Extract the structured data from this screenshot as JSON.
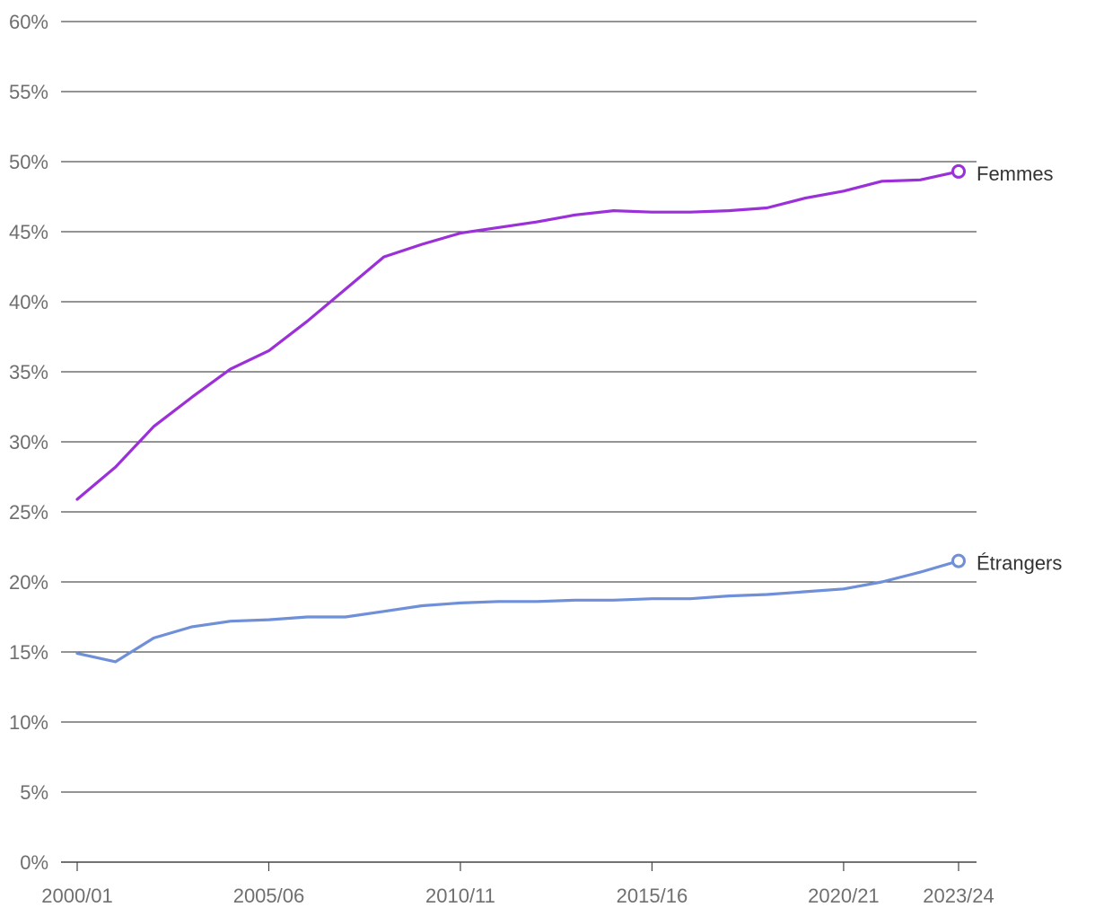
{
  "chart_data": {
    "type": "line",
    "title": "",
    "xlabel": "",
    "ylabel": "",
    "y_unit_suffix": "%",
    "ylim": [
      0,
      60
    ],
    "y_ticks": [
      0,
      5,
      10,
      15,
      20,
      25,
      30,
      35,
      40,
      45,
      50,
      55,
      60
    ],
    "x_tick_labels": [
      "2000/01",
      "2005/06",
      "2010/11",
      "2015/16",
      "2020/21",
      "2023/24"
    ],
    "x": [
      "2000/01",
      "2001/02",
      "2002/03",
      "2003/04",
      "2004/05",
      "2005/06",
      "2006/07",
      "2007/08",
      "2008/09",
      "2009/10",
      "2010/11",
      "2011/12",
      "2012/13",
      "2013/14",
      "2014/15",
      "2015/16",
      "2016/17",
      "2017/18",
      "2018/19",
      "2019/20",
      "2020/21",
      "2021/22",
      "2022/23",
      "2023/24"
    ],
    "grid": "horizontal",
    "series": [
      {
        "name": "Femmes",
        "color": "#9b30d9",
        "values": [
          25.9,
          28.2,
          31.1,
          33.2,
          35.2,
          36.5,
          38.6,
          40.9,
          43.2,
          44.1,
          44.9,
          45.3,
          45.7,
          46.2,
          46.5,
          46.4,
          46.4,
          46.5,
          46.7,
          47.4,
          47.9,
          48.6,
          48.7,
          49.3
        ]
      },
      {
        "name": "Étrangers",
        "color": "#6f8fd8",
        "values": [
          14.9,
          14.3,
          16.0,
          16.8,
          17.2,
          17.3,
          17.5,
          17.5,
          17.9,
          18.3,
          18.5,
          18.6,
          18.6,
          18.7,
          18.7,
          18.8,
          18.8,
          19.0,
          19.1,
          19.3,
          19.5,
          20.0,
          20.7,
          21.5
        ]
      }
    ]
  }
}
